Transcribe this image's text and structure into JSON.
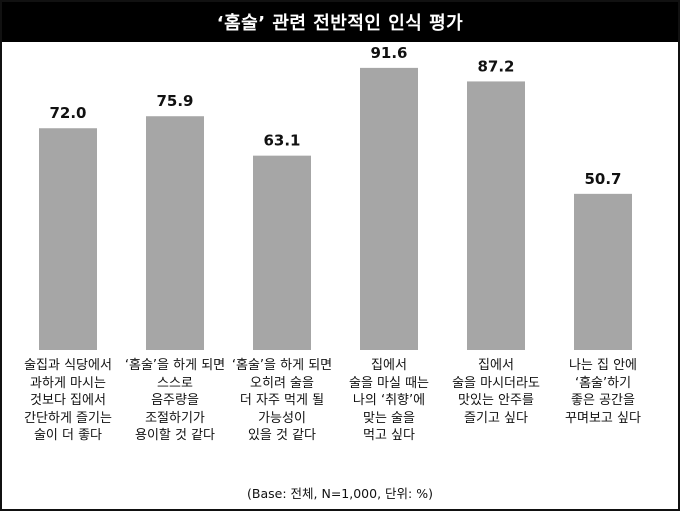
{
  "title": "‘홈술’ 관련 전반적인 인식 평가",
  "footnote": "(Base: 전체, N=1,000, 단위: %)",
  "colors": {
    "bar": "#a6a6a6",
    "title_bg": "#000000",
    "title_text": "#ffffff"
  },
  "chart_data": {
    "type": "bar",
    "categories": [
      "술집과 식당에서\n과하게 마시는\n것보다 집에서\n간단하게 즐기는\n술이 더 좋다",
      "‘홈술’을 하게 되면\n스스로\n음주량을\n조절하기가\n용이할 것 같다",
      "‘홈술’을 하게 되면\n오히려 술을\n더 자주 먹게 될\n가능성이\n있을 것 같다",
      "집에서\n술을 마실 때는\n나의 ‘취향’에\n맞는 술을\n먹고 싶다",
      "집에서\n술을 마시더라도\n맛있는 안주를\n즐기고 싶다",
      "나는 집 안에\n‘홈술’하기\n좋은 공간을\n꾸며보고 싶다"
    ],
    "values": [
      72.0,
      75.9,
      63.1,
      91.6,
      87.2,
      50.7
    ],
    "value_labels": [
      "72.0",
      "75.9",
      "63.1",
      "91.6",
      "87.2",
      "50.7"
    ],
    "ylim": [
      0,
      100
    ],
    "grid": false,
    "legend": "none"
  }
}
